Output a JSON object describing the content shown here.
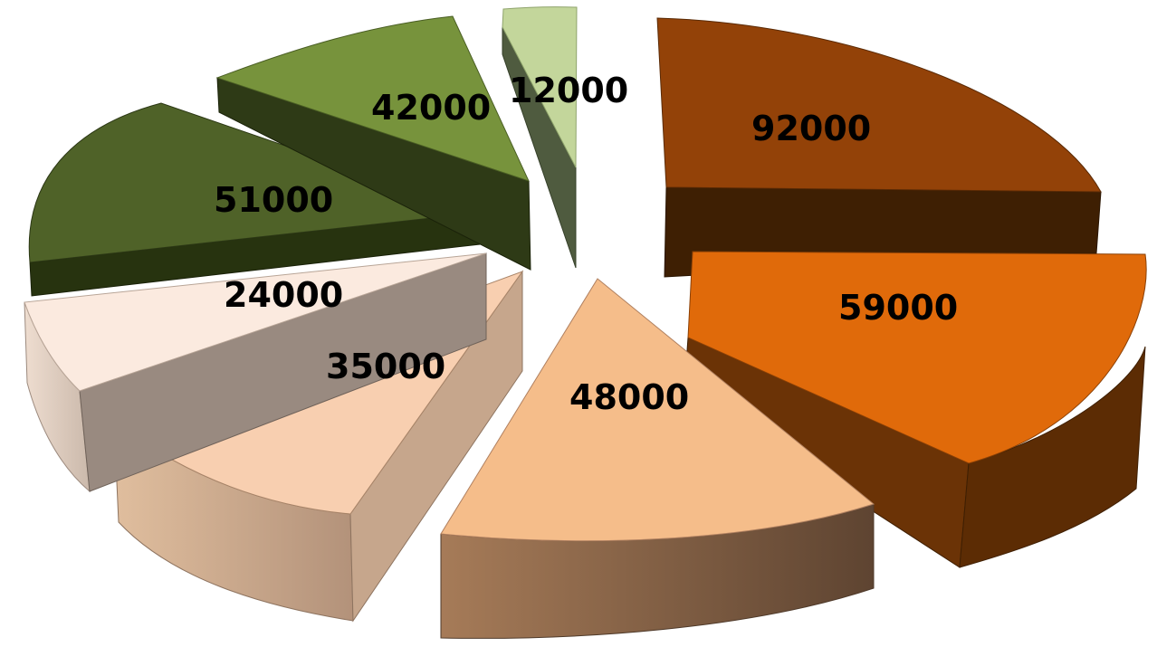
{
  "chart_data": {
    "type": "pie",
    "style": "3d-exploded",
    "title": "",
    "slices": [
      {
        "label": "",
        "value": 92000,
        "value_label": "92000",
        "color": "#934208"
      },
      {
        "label": "",
        "value": 59000,
        "value_label": "59000",
        "color": "#E06A0A"
      },
      {
        "label": "",
        "value": 48000,
        "value_label": "48000",
        "color": "#F5BD8A"
      },
      {
        "label": "",
        "value": 35000,
        "value_label": "35000",
        "color": "#F8CFB0"
      },
      {
        "label": "",
        "value": 24000,
        "value_label": "24000",
        "color": "#FBEADF"
      },
      {
        "label": "",
        "value": 51000,
        "value_label": "51000",
        "color": "#4F6228"
      },
      {
        "label": "",
        "value": 42000,
        "value_label": "42000",
        "color": "#77933C"
      },
      {
        "label": "",
        "value": 12000,
        "value_label": "12000",
        "color": "#C3D69B"
      }
    ],
    "legend": "none",
    "show_data_labels": true
  }
}
